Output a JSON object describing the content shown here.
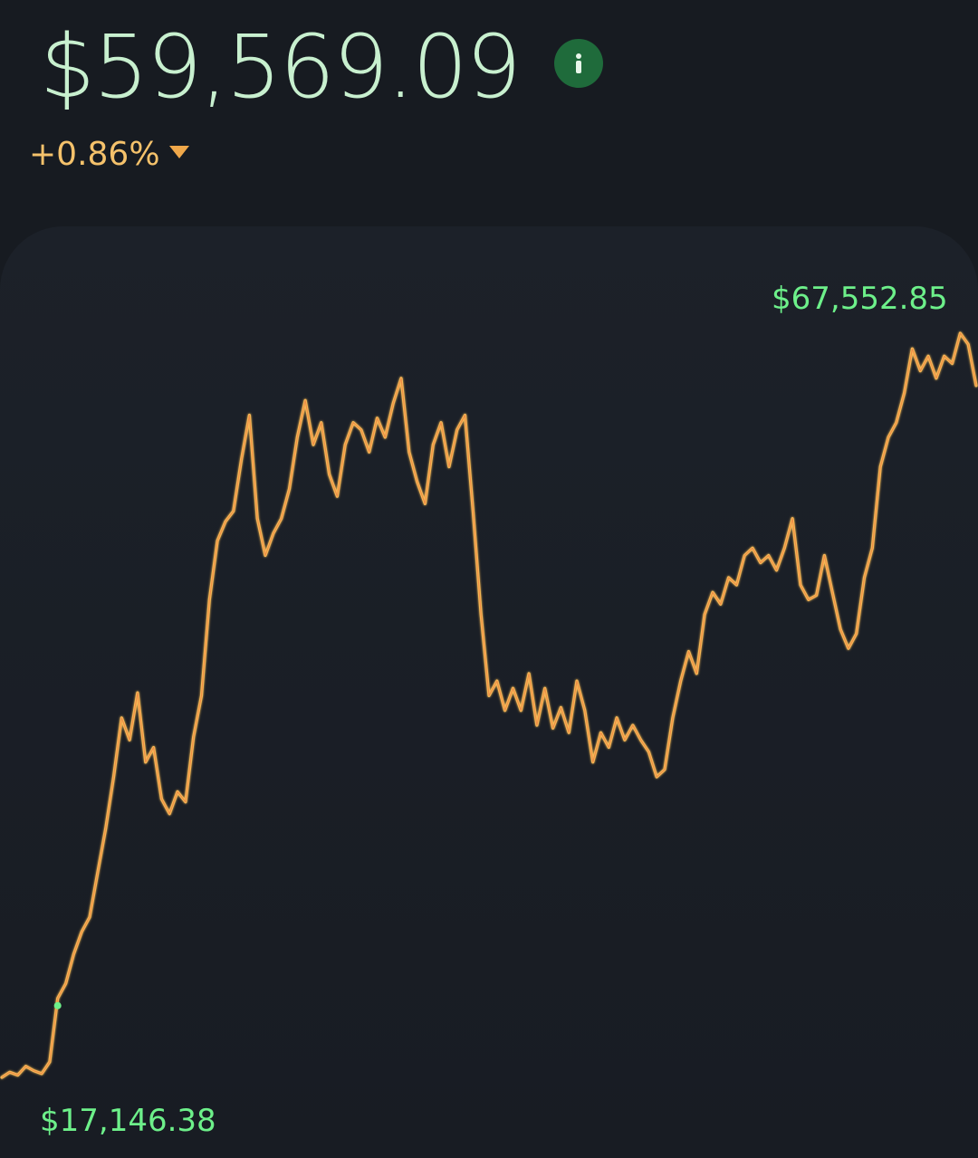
{
  "header": {
    "price": "$59,569.09",
    "change": "+0.86%",
    "info_icon": "info-icon",
    "change_direction_icon": "triangle-down-icon"
  },
  "chart": {
    "high_label": "$67,552.85",
    "low_label": "$17,146.38"
  },
  "colors": {
    "price": "#c8f0cf",
    "change": "#f5c26b",
    "line": "#f6b955",
    "labels": "#6df08a",
    "background": "#171b21"
  },
  "chart_data": {
    "type": "line",
    "y": [
      17146,
      17500,
      17300,
      17900,
      17600,
      17400,
      18200,
      22500,
      23500,
      25500,
      27000,
      28000,
      31000,
      34000,
      37500,
      41500,
      40000,
      43200,
      38500,
      39500,
      36000,
      35000,
      36500,
      35800,
      40200,
      43000,
      49500,
      53500,
      54800,
      55500,
      59000,
      62000,
      55000,
      52500,
      54000,
      55000,
      57000,
      60500,
      63000,
      60000,
      61500,
      58000,
      56500,
      60000,
      61500,
      61000,
      59500,
      61800,
      60500,
      62800,
      64500,
      59500,
      57500,
      56000,
      60000,
      61500,
      58500,
      61000,
      62000,
      55500,
      48500,
      43000,
      44000,
      42000,
      43500,
      42000,
      44500,
      41000,
      43500,
      40800,
      42200,
      40500,
      44000,
      42000,
      38500,
      40500,
      39500,
      41500,
      40000,
      41000,
      40000,
      39200,
      37500,
      38000,
      41500,
      44000,
      46000,
      44500,
      48500,
      50000,
      49200,
      51000,
      50500,
      52500,
      53000,
      52000,
      52500,
      51500,
      53000,
      55000,
      50500,
      49500,
      49800,
      52500,
      50000,
      47500,
      46200,
      47200,
      51000,
      53000,
      58500,
      60500,
      61500,
      63500,
      66500,
      65000,
      66000,
      64500,
      66000,
      65500,
      67552,
      66800,
      64000
    ]
  }
}
